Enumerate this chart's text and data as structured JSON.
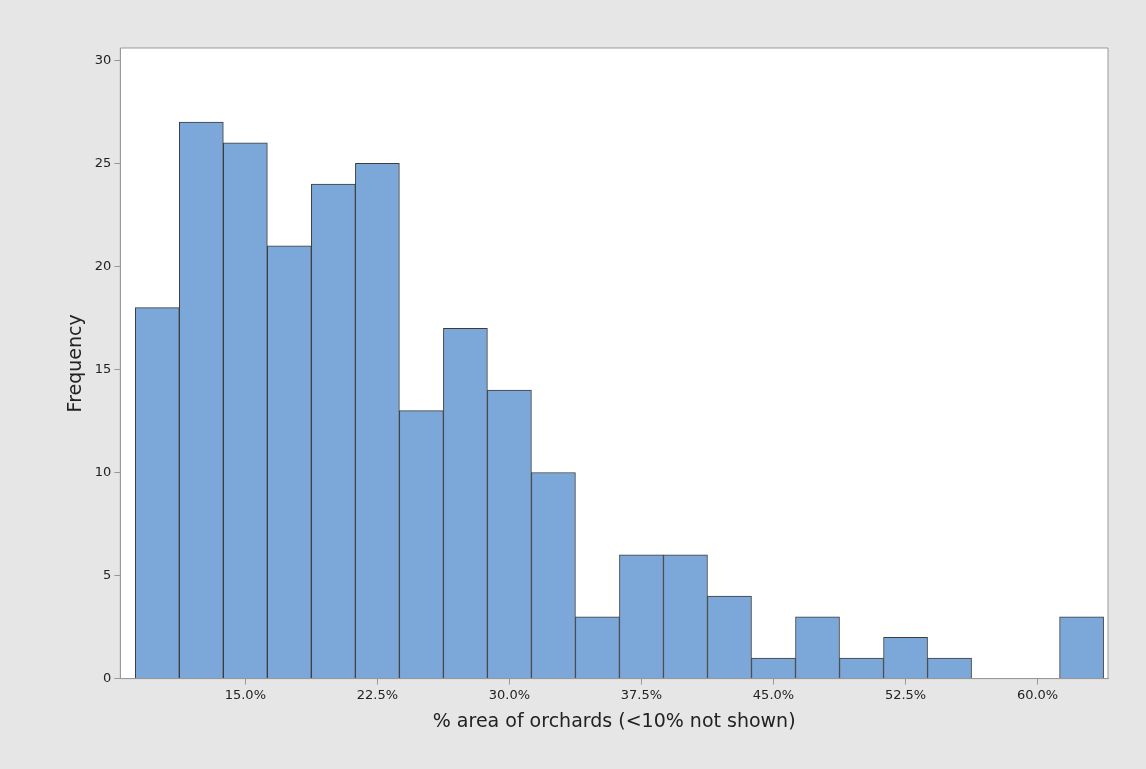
{
  "chart_data": {
    "type": "histogram",
    "xlabel": "% area of orchards (<10% not shown)",
    "ylabel": "Frequency",
    "bins": [
      8.75,
      11.25,
      13.75,
      16.25,
      18.75,
      21.25,
      23.75,
      26.25,
      28.75,
      31.25,
      33.75,
      36.25,
      38.75,
      41.25,
      43.75,
      46.25,
      48.75,
      51.25,
      53.75,
      56.25,
      58.75,
      61.25,
      63.75
    ],
    "values": [
      18,
      27,
      26,
      21,
      24,
      25,
      13,
      17,
      14,
      10,
      3,
      6,
      6,
      4,
      1,
      3,
      1,
      2,
      1,
      0,
      0,
      3
    ],
    "color": "#7ba7d9",
    "xlim": [
      7.9,
      64.0
    ],
    "xticks": [
      {
        "value": 15,
        "label": "15.0%"
      },
      {
        "value": 22.5,
        "label": "22.5%"
      },
      {
        "value": 30,
        "label": "30.0%"
      },
      {
        "value": 37.5,
        "label": "37.5%"
      },
      {
        "value": 45,
        "label": "45.0%"
      },
      {
        "value": 52.5,
        "label": "52.5%"
      },
      {
        "value": 60,
        "label": "60.0%"
      }
    ],
    "ylim": [
      0,
      30.6
    ],
    "yticks": [
      0,
      5,
      10,
      15,
      20,
      25,
      30
    ],
    "grid": false,
    "legend": false
  }
}
